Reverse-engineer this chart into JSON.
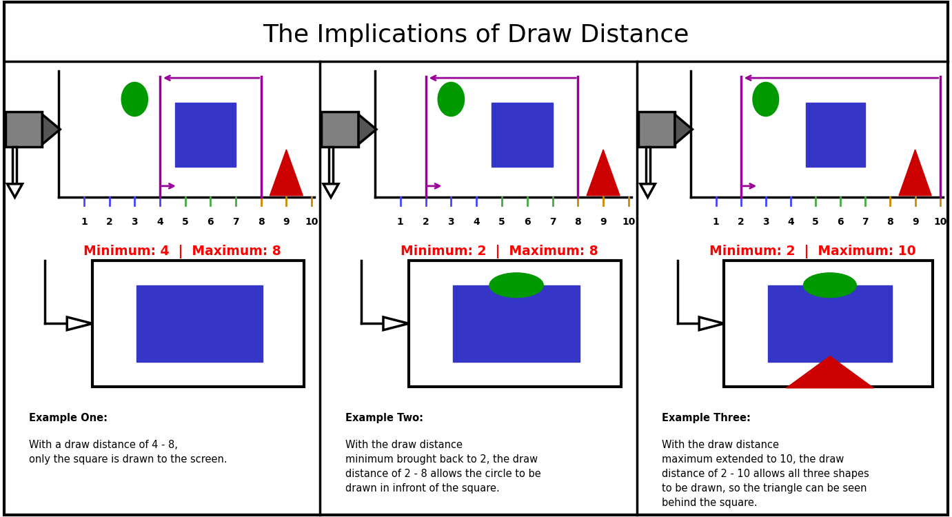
{
  "title": "The Implications of Draw Distance",
  "title_fontsize": 26,
  "examples": [
    {
      "min_draw": 4,
      "max_draw": 8,
      "label": "Minimum: 4  |  Maximum: 8",
      "desc_bold": "Example One:",
      "desc_rest": " With a draw distance of 4 - 8,\nonly the square is drawn to the screen.",
      "screen_circle": false,
      "screen_square": true,
      "screen_triangle": false
    },
    {
      "min_draw": 2,
      "max_draw": 8,
      "label": "Minimum: 2  |  Maximum: 8",
      "desc_bold": "Example Two:",
      "desc_rest": "  With the draw distance\nminimum brought back to 2, the draw\ndistance of 2 - 8 allows the circle to be\ndrawn in infront of the square.",
      "screen_circle": true,
      "screen_square": true,
      "screen_triangle": false
    },
    {
      "min_draw": 2,
      "max_draw": 10,
      "label": "Minimum: 2  |  Maximum: 10",
      "desc_bold": "Example Three:",
      "desc_rest": " With the draw distance\nmaximum extended to 10, the draw\ndistance of 2 - 10 allows all three shapes\nto be drawn, so the triangle can be seen\nbehind the square.",
      "screen_circle": true,
      "screen_square": true,
      "screen_triangle": true
    }
  ],
  "colors": {
    "blue": "#3535c8",
    "red": "#cc0000",
    "green": "#009900",
    "purple": "#990099",
    "gray_dark": "#555555",
    "gray_cam": "#808080",
    "black": "#000000",
    "white": "#ffffff",
    "red_label": "#ff0000"
  },
  "ruler_tick_colors": [
    "#4444ff",
    "#4444ff",
    "#4444ff",
    "#4444ff",
    "#44aa44",
    "#44aa44",
    "#44aa44",
    "#cc8800",
    "#cc8800",
    "#cc8800"
  ]
}
